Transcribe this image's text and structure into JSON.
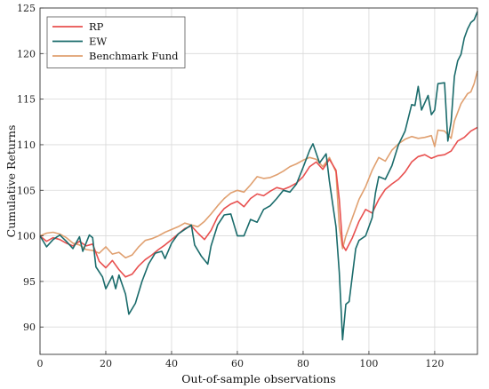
{
  "chart_data": {
    "type": "line",
    "title": "",
    "xlabel": "Out-of-sample observations",
    "ylabel": "Cumulative Returns",
    "xlim": [
      0,
      133
    ],
    "ylim": [
      87,
      125
    ],
    "xticks": [
      0,
      20,
      40,
      60,
      80,
      100,
      120
    ],
    "yticks": [
      90,
      95,
      100,
      105,
      110,
      115,
      120,
      125
    ],
    "grid": true,
    "legend_position": "top-left",
    "series": [
      {
        "name": "RP",
        "color": "#e8504f",
        "points": [
          [
            0,
            100
          ],
          [
            2,
            99.4
          ],
          [
            4,
            99.8
          ],
          [
            6,
            99.6
          ],
          [
            8,
            99.2
          ],
          [
            10,
            98.9
          ],
          [
            12,
            99.4
          ],
          [
            14,
            98.9
          ],
          [
            16,
            99.1
          ],
          [
            18,
            97.2
          ],
          [
            20,
            96.5
          ],
          [
            22,
            97.3
          ],
          [
            24,
            96.3
          ],
          [
            26,
            95.5
          ],
          [
            28,
            95.8
          ],
          [
            30,
            96.7
          ],
          [
            32,
            97.4
          ],
          [
            34,
            97.9
          ],
          [
            36,
            98.5
          ],
          [
            38,
            99.0
          ],
          [
            40,
            99.6
          ],
          [
            42,
            100.2
          ],
          [
            44,
            100.8
          ],
          [
            46,
            101.1
          ],
          [
            48,
            100.3
          ],
          [
            50,
            99.6
          ],
          [
            52,
            100.6
          ],
          [
            54,
            102.1
          ],
          [
            56,
            103.0
          ],
          [
            58,
            103.5
          ],
          [
            60,
            103.8
          ],
          [
            62,
            103.2
          ],
          [
            64,
            104.1
          ],
          [
            66,
            104.6
          ],
          [
            68,
            104.4
          ],
          [
            70,
            104.9
          ],
          [
            72,
            105.3
          ],
          [
            74,
            105.1
          ],
          [
            76,
            105.4
          ],
          [
            78,
            105.8
          ],
          [
            80,
            106.5
          ],
          [
            82,
            107.6
          ],
          [
            84,
            108.1
          ],
          [
            86,
            107.3
          ],
          [
            88,
            108.4
          ],
          [
            90,
            107.2
          ],
          [
            91,
            104.0
          ],
          [
            92,
            99.0
          ],
          [
            93,
            98.4
          ],
          [
            95,
            99.8
          ],
          [
            97,
            101.6
          ],
          [
            99,
            102.9
          ],
          [
            101,
            102.5
          ],
          [
            103,
            104.0
          ],
          [
            105,
            105.1
          ],
          [
            107,
            105.7
          ],
          [
            109,
            106.2
          ],
          [
            111,
            107.0
          ],
          [
            113,
            108.1
          ],
          [
            115,
            108.7
          ],
          [
            117,
            108.9
          ],
          [
            119,
            108.5
          ],
          [
            121,
            108.8
          ],
          [
            123,
            108.9
          ],
          [
            125,
            109.3
          ],
          [
            127,
            110.4
          ],
          [
            129,
            110.8
          ],
          [
            131,
            111.5
          ],
          [
            133,
            111.9
          ]
        ]
      },
      {
        "name": "EW",
        "color": "#1a6b6b",
        "points": [
          [
            0,
            100
          ],
          [
            2,
            98.8
          ],
          [
            4,
            99.6
          ],
          [
            6,
            100.1
          ],
          [
            8,
            99.4
          ],
          [
            10,
            98.6
          ],
          [
            12,
            99.9
          ],
          [
            13,
            98.3
          ],
          [
            15,
            100.1
          ],
          [
            16,
            99.8
          ],
          [
            17,
            96.6
          ],
          [
            19,
            95.5
          ],
          [
            20,
            94.2
          ],
          [
            22,
            95.6
          ],
          [
            23,
            94.2
          ],
          [
            24,
            95.7
          ],
          [
            26,
            93.6
          ],
          [
            27,
            91.4
          ],
          [
            29,
            92.6
          ],
          [
            31,
            95.0
          ],
          [
            33,
            96.9
          ],
          [
            35,
            98.1
          ],
          [
            37,
            98.3
          ],
          [
            38,
            97.5
          ],
          [
            40,
            99.2
          ],
          [
            42,
            100.2
          ],
          [
            44,
            100.7
          ],
          [
            46,
            101.2
          ],
          [
            47,
            99.0
          ],
          [
            49,
            97.8
          ],
          [
            51,
            96.9
          ],
          [
            52,
            98.9
          ],
          [
            54,
            101.2
          ],
          [
            56,
            102.3
          ],
          [
            58,
            102.4
          ],
          [
            60,
            100.0
          ],
          [
            62,
            100.0
          ],
          [
            64,
            101.8
          ],
          [
            66,
            101.5
          ],
          [
            68,
            102.9
          ],
          [
            70,
            103.3
          ],
          [
            72,
            104.1
          ],
          [
            74,
            105.0
          ],
          [
            76,
            104.8
          ],
          [
            78,
            105.7
          ],
          [
            80,
            107.5
          ],
          [
            82,
            109.4
          ],
          [
            83,
            110.1
          ],
          [
            85,
            108.0
          ],
          [
            87,
            109.0
          ],
          [
            88,
            106.0
          ],
          [
            89,
            103.5
          ],
          [
            90,
            101.0
          ],
          [
            91,
            96.0
          ],
          [
            92,
            88.6
          ],
          [
            93,
            92.5
          ],
          [
            94,
            92.8
          ],
          [
            96,
            98.6
          ],
          [
            97,
            99.5
          ],
          [
            99,
            100.0
          ],
          [
            101,
            102.0
          ],
          [
            102,
            104.7
          ],
          [
            103,
            106.5
          ],
          [
            105,
            106.2
          ],
          [
            107,
            107.7
          ],
          [
            109,
            110.0
          ],
          [
            111,
            111.5
          ],
          [
            113,
            114.4
          ],
          [
            114,
            114.3
          ],
          [
            115,
            116.4
          ],
          [
            116,
            113.8
          ],
          [
            118,
            115.4
          ],
          [
            119,
            113.3
          ],
          [
            120,
            113.8
          ],
          [
            121,
            116.7
          ],
          [
            123,
            116.8
          ],
          [
            124,
            110.4
          ],
          [
            125,
            112.5
          ],
          [
            126,
            117.5
          ],
          [
            127,
            119.2
          ],
          [
            128,
            119.9
          ],
          [
            129,
            121.7
          ],
          [
            130,
            122.7
          ],
          [
            131,
            123.4
          ],
          [
            132,
            123.7
          ],
          [
            133,
            124.6
          ]
        ]
      },
      {
        "name": "Benchmark Fund",
        "color": "#e0a070",
        "points": [
          [
            0,
            100
          ],
          [
            2,
            100.3
          ],
          [
            4,
            100.4
          ],
          [
            6,
            100.2
          ],
          [
            8,
            99.8
          ],
          [
            10,
            99.2
          ],
          [
            12,
            99.0
          ],
          [
            14,
            98.5
          ],
          [
            16,
            98.4
          ],
          [
            18,
            98.1
          ],
          [
            20,
            98.8
          ],
          [
            22,
            98.0
          ],
          [
            24,
            98.2
          ],
          [
            26,
            97.6
          ],
          [
            28,
            97.9
          ],
          [
            30,
            98.8
          ],
          [
            32,
            99.5
          ],
          [
            34,
            99.7
          ],
          [
            36,
            100.0
          ],
          [
            38,
            100.4
          ],
          [
            40,
            100.7
          ],
          [
            42,
            101.0
          ],
          [
            44,
            101.4
          ],
          [
            46,
            101.2
          ],
          [
            48,
            101.0
          ],
          [
            50,
            101.6
          ],
          [
            52,
            102.4
          ],
          [
            54,
            103.3
          ],
          [
            56,
            104.1
          ],
          [
            58,
            104.7
          ],
          [
            60,
            105.0
          ],
          [
            62,
            104.8
          ],
          [
            64,
            105.6
          ],
          [
            66,
            106.5
          ],
          [
            68,
            106.3
          ],
          [
            70,
            106.4
          ],
          [
            72,
            106.7
          ],
          [
            74,
            107.1
          ],
          [
            76,
            107.6
          ],
          [
            78,
            107.9
          ],
          [
            80,
            108.3
          ],
          [
            82,
            108.6
          ],
          [
            84,
            108.4
          ],
          [
            86,
            107.6
          ],
          [
            88,
            108.6
          ],
          [
            90,
            107.0
          ],
          [
            91,
            101.0
          ],
          [
            92,
            98.6
          ],
          [
            93,
            100.0
          ],
          [
            95,
            102.0
          ],
          [
            97,
            104.0
          ],
          [
            99,
            105.4
          ],
          [
            101,
            107.2
          ],
          [
            103,
            108.6
          ],
          [
            105,
            108.2
          ],
          [
            107,
            109.4
          ],
          [
            109,
            110.1
          ],
          [
            111,
            110.6
          ],
          [
            113,
            110.9
          ],
          [
            115,
            110.7
          ],
          [
            117,
            110.8
          ],
          [
            119,
            111.0
          ],
          [
            120,
            109.8
          ],
          [
            121,
            111.6
          ],
          [
            123,
            111.5
          ],
          [
            125,
            110.7
          ],
          [
            126,
            112.6
          ],
          [
            128,
            114.5
          ],
          [
            130,
            115.6
          ],
          [
            131,
            115.8
          ],
          [
            132,
            116.7
          ],
          [
            133,
            118.1
          ]
        ]
      }
    ]
  }
}
